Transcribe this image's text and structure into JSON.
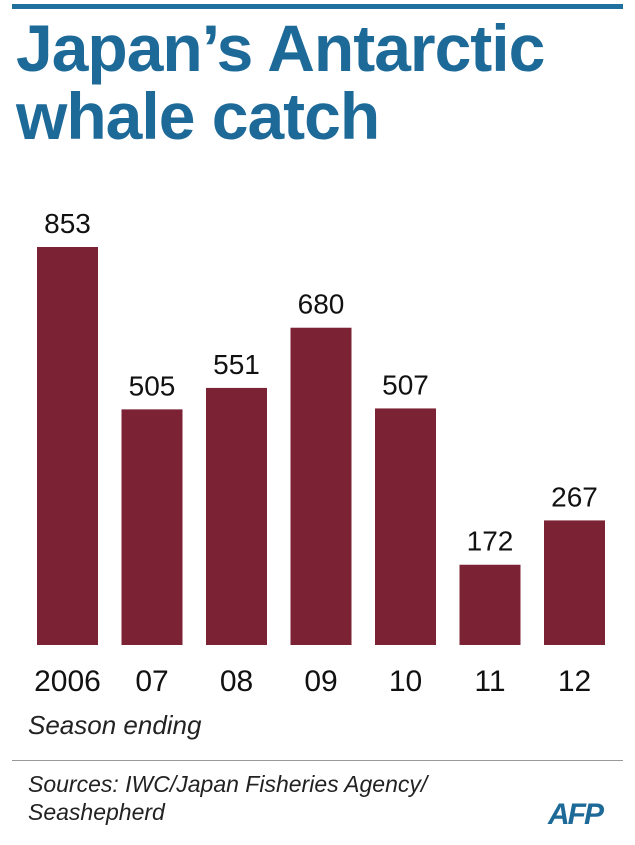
{
  "title_line1": "Japan’s Antarctic",
  "title_line2": "whale catch",
  "chart_data": {
    "type": "bar",
    "title": "Japan’s Antarctic whale catch",
    "categories": [
      "2006",
      "07",
      "08",
      "09",
      "10",
      "11",
      "12"
    ],
    "values": [
      853,
      505,
      551,
      680,
      507,
      172,
      267
    ],
    "xlabel": "Season ending",
    "ylabel": "",
    "ylim": [
      0,
      853
    ],
    "grid": false,
    "bar_color": "#7b2235"
  },
  "x_caption": "Season ending",
  "source_line1": "Sources: IWC/Japan Fisheries Agency/",
  "source_line2": "Seashepherd",
  "logo_text": "AFP",
  "colors": {
    "title": "#1d6a99",
    "bar": "#7b2235",
    "text": "#222222"
  }
}
